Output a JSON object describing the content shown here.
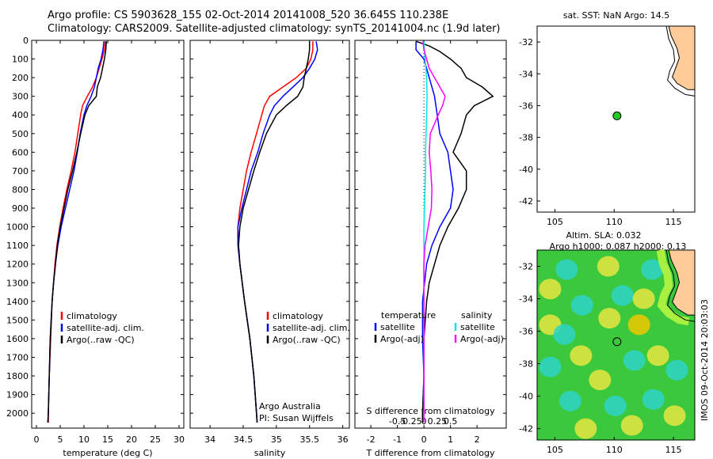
{
  "header": {
    "line1": "Argo profile: CS 5903628_155 02-Oct-2014 20141008_520 36.645S 110.238E",
    "line2": "Climatology: CARS2009. Satellite-adjusted climatology: synTS_20141004.nc (1.9d later)"
  },
  "colors": {
    "climatology": "#ff0000",
    "satellite": "#0000ff",
    "argo": "#000000",
    "sal_satellite": "#00e5ee",
    "sal_argo": "#ff00ff",
    "land": "#ffcc99",
    "float_marker": "#22cc22"
  },
  "chart_data": [
    {
      "id": "temp-profile",
      "type": "line",
      "xlabel": "temperature (deg C)",
      "ylabel": "",
      "xlim": [
        -1,
        31
      ],
      "ylim": [
        2080,
        0
      ],
      "xticks": [
        0,
        5,
        10,
        15,
        20,
        25,
        30
      ],
      "yticks": [
        0,
        100,
        200,
        300,
        400,
        500,
        600,
        700,
        800,
        900,
        1000,
        1100,
        1200,
        1300,
        1400,
        1500,
        1600,
        1700,
        1800,
        1900,
        2000
      ],
      "series": [
        {
          "name": "climatology",
          "color": "#ff0000",
          "depth": [
            5,
            50,
            100,
            150,
            200,
            250,
            300,
            350,
            400,
            500,
            600,
            700,
            800,
            900,
            1000,
            1100,
            1200,
            1300,
            1400,
            1600,
            1800,
            2000,
            2050
          ],
          "values": [
            14.5,
            14.3,
            13.8,
            13.2,
            12.6,
            11.8,
            10.7,
            9.7,
            9.3,
            8.7,
            8.1,
            7.3,
            6.4,
            5.6,
            4.9,
            4.3,
            3.9,
            3.6,
            3.3,
            3.0,
            2.7,
            2.5,
            2.5
          ]
        },
        {
          "name": "satellite-adj. clim.",
          "color": "#0000ff",
          "depth": [
            5,
            50,
            100,
            150,
            200,
            250,
            300,
            350,
            400,
            500,
            600,
            700,
            800,
            900,
            1000,
            1100,
            1200,
            1300,
            1400,
            1600,
            1800,
            2000,
            2050
          ],
          "values": [
            14.2,
            14.0,
            13.6,
            13.0,
            12.6,
            12.2,
            11.5,
            10.6,
            10.0,
            9.2,
            8.6,
            7.9,
            7.0,
            6.1,
            5.2,
            4.5,
            4.0,
            3.6,
            3.3,
            2.9,
            2.7,
            2.5,
            2.4
          ]
        },
        {
          "name": "Argo(..raw -QC)",
          "color": "#000000",
          "depth": [
            5,
            50,
            100,
            150,
            200,
            250,
            300,
            350,
            400,
            500,
            600,
            700,
            800,
            900,
            1000,
            1100,
            1200,
            1300,
            1400,
            1600,
            1800,
            2000,
            2050
          ],
          "values": [
            14.7,
            14.6,
            14.3,
            13.9,
            13.5,
            12.8,
            12.6,
            11.0,
            10.2,
            9.3,
            8.5,
            7.6,
            6.6,
            5.8,
            5.0,
            4.4,
            4.0,
            3.6,
            3.3,
            2.9,
            2.7,
            2.5,
            2.4
          ]
        }
      ],
      "legend": [
        "climatology",
        "satellite-adj. clim.",
        "Argo(..raw -QC)"
      ],
      "legend_position": "lower-middle"
    },
    {
      "id": "sal-profile",
      "type": "line",
      "xlabel": "salinity",
      "xlim": [
        33.7,
        36.1
      ],
      "ylim": [
        2080,
        0
      ],
      "xticks": [
        34,
        34.5,
        35,
        35.5,
        36
      ],
      "series": [
        {
          "name": "climatology",
          "color": "#ff0000",
          "depth": [
            5,
            50,
            100,
            150,
            200,
            250,
            300,
            350,
            400,
            500,
            600,
            700,
            800,
            900,
            1000,
            1100,
            1200,
            1400,
            1600,
            1800,
            2000,
            2050
          ],
          "values": [
            35.55,
            35.55,
            35.52,
            35.45,
            35.3,
            35.1,
            34.9,
            34.82,
            34.78,
            34.7,
            34.62,
            34.55,
            34.5,
            34.45,
            34.42,
            34.43,
            34.45,
            34.52,
            34.6,
            34.66,
            34.7,
            34.71
          ]
        },
        {
          "name": "satellite-adj. clim.",
          "color": "#0000ff",
          "depth": [
            5,
            50,
            100,
            150,
            200,
            250,
            300,
            350,
            400,
            500,
            600,
            700,
            800,
            900,
            1000,
            1100,
            1200,
            1400,
            1600,
            1800,
            2000,
            2050
          ],
          "values": [
            35.6,
            35.62,
            35.58,
            35.5,
            35.4,
            35.25,
            35.1,
            34.97,
            34.9,
            34.8,
            34.72,
            34.62,
            34.55,
            34.48,
            34.42,
            34.42,
            34.45,
            34.52,
            34.6,
            34.66,
            34.7,
            34.71
          ]
        },
        {
          "name": "Argo(..raw -QC)",
          "color": "#000000",
          "depth": [
            5,
            50,
            100,
            150,
            200,
            250,
            300,
            350,
            400,
            500,
            600,
            700,
            800,
            900,
            1000,
            1100,
            1200,
            1400,
            1600,
            1800,
            2000,
            2050
          ],
          "values": [
            35.5,
            35.5,
            35.48,
            35.45,
            35.42,
            35.4,
            35.32,
            35.15,
            35.0,
            34.85,
            34.75,
            34.66,
            34.58,
            34.5,
            34.45,
            34.43,
            34.45,
            34.52,
            34.6,
            34.66,
            34.7,
            34.71
          ]
        }
      ],
      "legend": [
        "climatology",
        "satellite-adj. clim.",
        "Argo(..raw -QC)"
      ],
      "legend_position": "lower-middle",
      "annotations": [
        "Argo Australia",
        "PI: Susan Wijffels"
      ]
    },
    {
      "id": "diff-profile",
      "type": "line",
      "xlabel": "T difference from climatology",
      "xlabel2": "S difference from climatology",
      "xlim": [
        -2.6,
        3.1
      ],
      "ylim": [
        2080,
        0
      ],
      "xticks": [
        -2,
        -1,
        0,
        1,
        2
      ],
      "xticks_top": [
        "-0.5",
        "-0.25",
        "0",
        "0.25",
        "0.5"
      ],
      "series": [
        {
          "name": "temperature satellite",
          "color": "#0000ff",
          "depth": [
            5,
            50,
            100,
            200,
            300,
            400,
            500,
            600,
            700,
            800,
            900,
            1000,
            1100,
            1200,
            1400,
            1600,
            1800,
            2000,
            2050
          ],
          "values": [
            -0.3,
            -0.3,
            0.0,
            0.2,
            0.4,
            0.5,
            0.6,
            0.9,
            1.0,
            1.1,
            1.0,
            0.6,
            0.3,
            0.1,
            -0.05,
            -0.05,
            0.0,
            -0.05,
            -0.05
          ]
        },
        {
          "name": "temperature Argo(-adj)",
          "color": "#000000",
          "depth": [
            5,
            30,
            60,
            100,
            150,
            200,
            250,
            300,
            350,
            400,
            500,
            600,
            700,
            800,
            900,
            1000,
            1100,
            1200,
            1300,
            1400,
            1600,
            1800,
            2000,
            2050
          ],
          "values": [
            -0.3,
            0.2,
            0.6,
            1.0,
            1.4,
            1.6,
            2.2,
            2.6,
            1.9,
            1.6,
            1.4,
            1.1,
            1.6,
            1.6,
            1.3,
            0.9,
            0.6,
            0.4,
            0.2,
            0.1,
            0.0,
            0.0,
            -0.05,
            -0.05
          ]
        },
        {
          "name": "salinity satellite",
          "color": "#00e5ee",
          "depth": [
            5,
            100,
            200,
            300,
            400,
            500,
            600,
            700,
            800,
            900,
            1000,
            1100,
            1200,
            1400,
            1600,
            1800,
            2000,
            2050
          ],
          "values": [
            0.0,
            0.02,
            0.05,
            0.06,
            0.05,
            0.04,
            0.03,
            0.03,
            0.02,
            0.01,
            0.0,
            0.0,
            0.0,
            0.0,
            0.0,
            0.0,
            0.0,
            0.0
          ]
        },
        {
          "name": "salinity Argo(-adj)",
          "color": "#ff00ff",
          "depth": [
            5,
            50,
            100,
            150,
            200,
            250,
            300,
            350,
            400,
            500,
            600,
            700,
            800,
            900,
            1000,
            1100,
            1200,
            1400,
            1600,
            1800,
            2000,
            2050
          ],
          "values": [
            -0.02,
            0.0,
            0.05,
            0.1,
            0.2,
            0.3,
            0.4,
            0.35,
            0.27,
            0.12,
            0.1,
            0.13,
            0.15,
            0.14,
            0.08,
            0.02,
            0.0,
            0.0,
            0.0,
            0.0,
            0.0,
            0.0
          ]
        }
      ],
      "legend_temperature": {
        "title": "temperature",
        "items": [
          "satellite",
          "Argo(-adj)"
        ]
      },
      "legend_salinity": {
        "title": "salinity",
        "items": [
          "satellite",
          "Argo(-adj)"
        ]
      }
    },
    {
      "id": "sst-map",
      "type": "scatter",
      "title": "sat. SST: NaN Argo: 14.5",
      "xlim": [
        103.5,
        116.8
      ],
      "ylim": [
        -42.7,
        -31.0
      ],
      "xticks": [
        105,
        110,
        115
      ],
      "yticks": [
        -32,
        -34,
        -36,
        -38,
        -40,
        -42
      ],
      "float": {
        "lon": 110.238,
        "lat": -36.645
      }
    },
    {
      "id": "sla-map",
      "type": "heatmap",
      "title": "Altim. SLA: 0.032",
      "subtitle": "Argo h1000: 0.087 h2000: 0.13",
      "xlim": [
        103.5,
        116.8
      ],
      "ylim": [
        -42.7,
        -31.0
      ],
      "xticks": [
        105,
        110,
        115
      ],
      "yticks": [
        -32,
        -34,
        -36,
        -38,
        -40,
        -42
      ],
      "float": {
        "lon": 110.238,
        "lat": -36.645
      },
      "stamp": "IMOS 09-Oct-2014 20:03:03"
    }
  ]
}
